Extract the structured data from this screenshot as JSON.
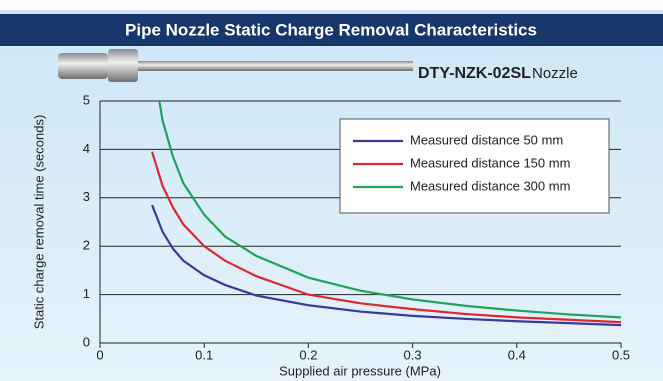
{
  "chart_data": {
    "type": "line",
    "title": "Pipe Nozzle Static Charge Removal Characteristics",
    "product_code": "DTY-NZK-02SL",
    "product_name": "Nozzle",
    "x_label": "Supplied air pressure (MPa)",
    "y_label": "Static charge removal time (seconds)",
    "xlim": [
      0,
      0.5
    ],
    "ylim": [
      0,
      5
    ],
    "xticks": [
      0,
      0.1,
      0.2,
      0.3,
      0.4,
      0.5
    ],
    "yticks": [
      0,
      1,
      2,
      3,
      4,
      5
    ],
    "grid": true,
    "legend": "upper right",
    "series": [
      {
        "name": "Measured distance 50 mm",
        "color": "#3a3a9c",
        "x": [
          0.05,
          0.06,
          0.07,
          0.08,
          0.1,
          0.12,
          0.15,
          0.2,
          0.25,
          0.3,
          0.35,
          0.4,
          0.45,
          0.5
        ],
        "values": [
          2.85,
          2.3,
          1.95,
          1.7,
          1.4,
          1.2,
          0.98,
          0.78,
          0.65,
          0.56,
          0.5,
          0.45,
          0.41,
          0.37
        ]
      },
      {
        "name": "Measured distance 150 mm",
        "color": "#e0262e",
        "x": [
          0.05,
          0.06,
          0.07,
          0.08,
          0.1,
          0.12,
          0.15,
          0.2,
          0.25,
          0.3,
          0.35,
          0.4,
          0.45,
          0.5
        ],
        "values": [
          3.95,
          3.25,
          2.8,
          2.45,
          2.0,
          1.7,
          1.38,
          1.0,
          0.82,
          0.7,
          0.6,
          0.53,
          0.48,
          0.43
        ]
      },
      {
        "name": "Measured distance 300 mm",
        "color": "#1fa35a",
        "x": [
          0.057,
          0.06,
          0.07,
          0.08,
          0.1,
          0.12,
          0.15,
          0.2,
          0.25,
          0.3,
          0.35,
          0.4,
          0.45,
          0.5
        ],
        "values": [
          5.0,
          4.6,
          3.85,
          3.3,
          2.65,
          2.2,
          1.8,
          1.35,
          1.08,
          0.9,
          0.77,
          0.67,
          0.59,
          0.53
        ]
      }
    ]
  }
}
